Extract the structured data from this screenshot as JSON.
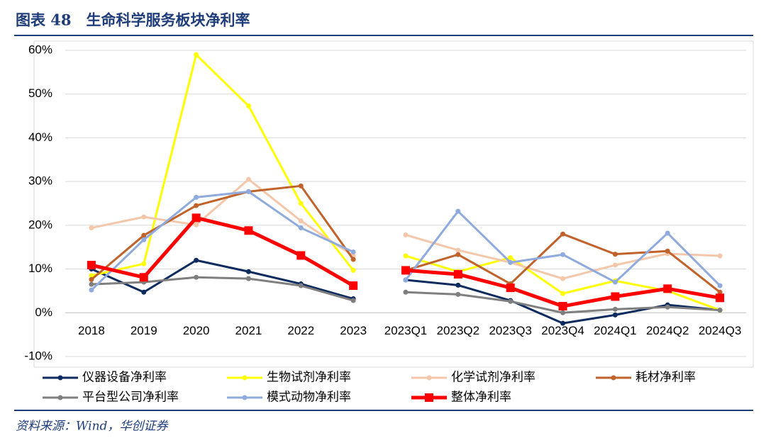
{
  "chart_data": {
    "type": "line",
    "title": "图表 48　生命科学服务板块净利率",
    "source": "资料来源：Wind，华创证券",
    "categories": [
      "2018",
      "2019",
      "2020",
      "2021",
      "2022",
      "2023",
      "2023Q1",
      "2023Q2",
      "2023Q3",
      "2023Q4",
      "2024Q1",
      "2024Q2",
      "2024Q3"
    ],
    "break_before_index": 6,
    "ylim": [
      -10,
      60
    ],
    "yticks": [
      {
        "value": -10,
        "label": "-10%"
      },
      {
        "value": 0,
        "label": "0%"
      },
      {
        "value": 10,
        "label": "10%"
      },
      {
        "value": 20,
        "label": "20%"
      },
      {
        "value": 30,
        "label": "30%"
      },
      {
        "value": 40,
        "label": "40%"
      },
      {
        "value": 50,
        "label": "50%"
      },
      {
        "value": 60,
        "label": "60%"
      }
    ],
    "grid": true,
    "series": [
      {
        "name": "仪器设备净利率",
        "color": "#0d2b5e",
        "values": [
          10,
          4.7,
          12,
          9.4,
          6.6,
          3.2,
          7.5,
          6.3,
          2.8,
          -2.4,
          -0.5,
          1.8,
          0.6
        ]
      },
      {
        "name": "生物试剂净利率",
        "color": "#ffff00",
        "values": [
          8.5,
          11.2,
          59,
          47.3,
          25,
          9.7,
          13,
          9.4,
          12.6,
          4.4,
          7.3,
          5,
          0.6
        ]
      },
      {
        "name": "化学试剂净利率",
        "color": "#f4c7ab",
        "values": [
          19.4,
          21.9,
          20.1,
          30.5,
          21,
          13,
          17.8,
          14.3,
          11.5,
          7.8,
          10.9,
          13.5,
          13
        ]
      },
      {
        "name": "耗材净利率",
        "color": "#c0622a",
        "values": [
          7.6,
          17.7,
          24.5,
          27.7,
          29,
          12.2,
          9.7,
          13.3,
          6.6,
          18,
          13.4,
          14.1,
          4.7
        ]
      },
      {
        "name": "平台型公司净利率",
        "color": "#7f7f7f",
        "values": [
          6.5,
          7,
          8.1,
          7.8,
          6.2,
          2.8,
          4.7,
          4.2,
          2.6,
          0,
          0.8,
          1.3,
          0.6
        ]
      },
      {
        "name": "模式动物净利率",
        "color": "#8faadc",
        "values": [
          5.2,
          16.7,
          26.4,
          27.7,
          19.4,
          13.9,
          7.5,
          23.2,
          11.5,
          13.3,
          7,
          18.2,
          6.2
        ]
      },
      {
        "name": "整体净利率",
        "color": "#ff0000",
        "values": [
          10.9,
          8.1,
          21.7,
          18.8,
          13.1,
          6.2,
          9.7,
          8.8,
          5.7,
          1.5,
          3.7,
          5.5,
          3.4
        ]
      }
    ]
  }
}
